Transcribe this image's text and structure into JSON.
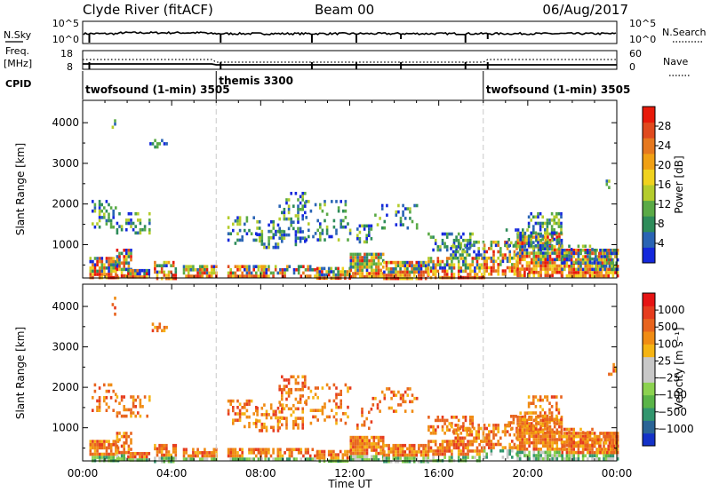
{
  "header": {
    "station": "Clyde River (fitACF)",
    "beam": "Beam 00",
    "date": "06/Aug/2017"
  },
  "top_panel": {
    "left_label": "N.Sky",
    "left_ticks": [
      "10^5",
      "10^0"
    ],
    "right_label": "N.Search",
    "right_ticks": [
      "10^5",
      "10^0"
    ]
  },
  "freq_panel": {
    "left_label_1": "Freq.",
    "left_label_2": "[MHz]",
    "left_ticks": [
      "18",
      "8"
    ],
    "right_label": "Nave",
    "right_ticks": [
      "60",
      "0"
    ]
  },
  "cpid": {
    "label": "CPID",
    "segments": [
      {
        "name": "twofsound (1-min) 3505",
        "start_hour": 0
      },
      {
        "name": "themis 3300",
        "start_hour": 6
      },
      {
        "name": "twofsound (1-min) 3505",
        "start_hour": 18
      }
    ]
  },
  "chart_data": [
    {
      "type": "heatmap",
      "quantity": "Power",
      "ylabel": "Slant Range [km]",
      "ylim": [
        180,
        4550
      ],
      "yticks": [
        "1000",
        "2000",
        "3000",
        "4000"
      ],
      "xlim_hours": [
        0,
        24
      ],
      "colorbar": {
        "title": "Power [dB]",
        "ticks": [
          "4",
          "8",
          "12",
          "16",
          "20",
          "24",
          "28"
        ],
        "colors": [
          "#1428dc",
          "#2a64b4",
          "#2e8c5a",
          "#5aaa46",
          "#b4cc2c",
          "#f0d21e",
          "#f0a014",
          "#e6781e",
          "#e04a1e",
          "#e81a0a"
        ]
      }
    },
    {
      "type": "heatmap",
      "quantity": "Velocity",
      "ylabel": "Slant Range [km]",
      "ylim": [
        180,
        4550
      ],
      "yticks": [
        "1000",
        "2000",
        "3000",
        "4000"
      ],
      "xlim_hours": [
        0,
        24
      ],
      "colorbar": {
        "title": "Velocity [m s⁻¹]",
        "ticks": [
          "1000",
          "500",
          "100",
          "25",
          "−25",
          "−100",
          "−500",
          "−1000"
        ],
        "colors": [
          "#1432c8",
          "#2a6496",
          "#32966e",
          "#5ab448",
          "#8cd250",
          "#c8c8c8",
          "#c8c8c8",
          "#f5b414",
          "#f08c14",
          "#e8641e",
          "#e63c1e",
          "#e61414"
        ]
      }
    }
  ],
  "x_axis": {
    "ticks": [
      "00:00",
      "04:00",
      "08:00",
      "12:00",
      "16:00",
      "20:00",
      "00:00"
    ],
    "label": "Time UT"
  }
}
